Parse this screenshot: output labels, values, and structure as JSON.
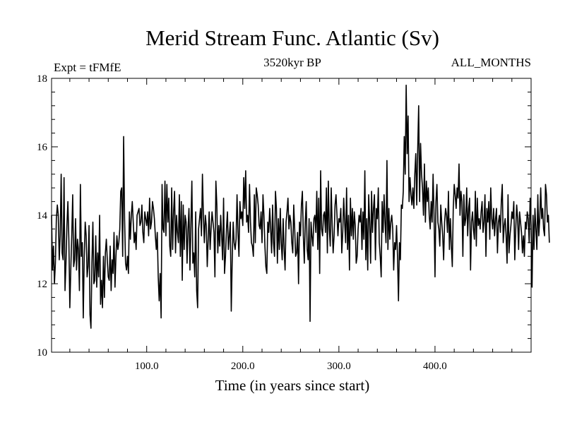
{
  "chart_data": {
    "type": "line",
    "title": "Merid Stream Func. Atlantic (Sv)",
    "left_label": "Expt = tFMfE",
    "center_label": "3520kyr BP",
    "right_label": "ALL_MONTHS",
    "xlabel": "Time (in years since start)",
    "ylabel": "",
    "xlim": [
      1,
      500
    ],
    "ylim": [
      10,
      18
    ],
    "x_ticks": [
      100,
      200,
      300,
      400
    ],
    "x_tick_labels": [
      "100.0",
      "200.0",
      "300.0",
      "400.0"
    ],
    "y_ticks": [
      10,
      12,
      14,
      16,
      18
    ],
    "y_tick_labels": [
      "10",
      "12",
      "14",
      "16",
      "18"
    ],
    "colors": {
      "line": "#000000",
      "axes": "#000000",
      "background": "#ffffff"
    },
    "series": [
      {
        "name": "Merid Stream Func. Atlantic",
        "x_start": 1,
        "x_step": 1,
        "values": [
          14.0,
          12.4,
          13.1,
          12.0,
          12.6,
          13.9,
          14.3,
          14.0,
          12.7,
          13.4,
          15.2,
          12.9,
          12.7,
          15.1,
          11.8,
          12.6,
          13.7,
          14.4,
          13.3,
          11.3,
          12.4,
          13.4,
          14.6,
          12.5,
          12.7,
          13.9,
          12.4,
          13.3,
          13.0,
          11.8,
          14.9,
          12.8,
          13.2,
          11.0,
          12.8,
          13.8,
          13.4,
          12.2,
          12.5,
          13.7,
          11.1,
          10.7,
          12.6,
          13.8,
          12.0,
          12.1,
          13.4,
          11.9,
          12.9,
          12.2,
          14.0,
          11.4,
          12.1,
          11.3,
          12.8,
          11.6,
          12.9,
          13.3,
          12.7,
          12.2,
          12.1,
          13.1,
          11.8,
          12.7,
          12.3,
          13.5,
          11.9,
          12.8,
          13.4,
          13.0,
          13.2,
          13.6,
          14.7,
          14.8,
          12.8,
          16.3,
          13.9,
          12.6,
          12.4,
          12.8,
          12.3,
          14.1,
          13.3,
          14.0,
          14.4,
          13.8,
          13.2,
          13.5,
          13.0,
          14.0,
          14.1,
          14.2,
          13.7,
          13.8,
          14.3,
          13.5,
          13.2,
          14.1,
          13.9,
          13.7,
          14.1,
          13.4,
          14.5,
          13.6,
          13.8,
          14.4,
          14.2,
          13.9,
          13.4,
          13.0,
          13.5,
          12.2,
          11.5,
          12.3,
          11.0,
          14.9,
          13.6,
          13.5,
          15.0,
          13.4,
          14.9,
          13.8,
          14.5,
          13.1,
          12.8,
          14.8,
          13.0,
          14.1,
          14.7,
          12.9,
          14.0,
          13.5,
          13.2,
          14.6,
          12.8,
          14.4,
          12.1,
          14.3,
          13.0,
          14.0,
          13.8,
          12.6,
          13.6,
          14.2,
          12.4,
          13.7,
          15.0,
          12.6,
          12.9,
          12.2,
          14.1,
          11.8,
          11.3,
          13.6,
          13.9,
          14.2,
          13.4,
          15.2,
          14.0,
          13.2,
          14.0,
          13.7,
          12.5,
          13.3,
          14.1,
          13.0,
          13.6,
          14.1,
          13.8,
          13.5,
          12.2,
          15.0,
          14.3,
          12.9,
          13.7,
          13.1,
          14.0,
          13.4,
          12.7,
          14.5,
          12.3,
          12.8,
          13.6,
          14.1,
          13.0,
          13.4,
          13.8,
          11.2,
          12.7,
          13.8,
          13.2,
          13.0,
          13.3,
          14.6,
          13.5,
          12.8,
          14.4,
          13.9,
          14.1,
          13.7,
          15.1,
          14.2,
          15.3,
          13.8,
          14.0,
          13.5,
          14.9,
          13.8,
          13.2,
          13.1,
          12.8,
          14.6,
          13.2,
          14.8,
          14.6,
          14.3,
          13.7,
          13.6,
          14.1,
          13.2,
          14.6,
          14.0,
          13.1,
          12.5,
          12.3,
          13.8,
          13.5,
          14.2,
          13.6,
          12.9,
          14.3,
          13.2,
          12.8,
          14.7,
          14.2,
          12.6,
          13.9,
          13.0,
          14.2,
          13.2,
          12.7,
          13.9,
          13.0,
          12.4,
          13.8,
          14.1,
          14.5,
          13.6,
          14.0,
          13.8,
          13.2,
          12.9,
          14.3,
          13.6,
          12.8,
          12.9,
          13.5,
          12.0,
          13.8,
          13.4,
          14.3,
          14.7,
          13.4,
          12.6,
          13.8,
          14.4,
          13.0,
          12.7,
          13.9,
          10.9,
          13.8,
          13.4,
          13.1,
          13.9,
          14.0,
          13.5,
          14.7,
          13.0,
          14.5,
          12.3,
          15.3,
          13.6,
          13.4,
          14.0,
          14.1,
          13.5,
          14.8,
          12.9,
          15.0,
          13.6,
          13.1,
          14.8,
          13.7,
          12.9,
          13.4,
          14.3,
          14.6,
          14.0,
          13.4,
          13.9,
          13.8,
          14.2,
          12.9,
          13.5,
          14.5,
          13.8,
          13.2,
          14.8,
          13.0,
          14.0,
          12.4,
          14.5,
          13.4,
          14.2,
          13.3,
          14.1,
          13.7,
          12.6,
          12.8,
          13.6,
          14.0,
          13.8,
          14.2,
          13.0,
          14.1,
          13.3,
          15.3,
          12.7,
          13.9,
          12.4,
          14.6,
          13.8,
          12.6,
          14.7,
          13.5,
          14.2,
          14.6,
          12.7,
          14.2,
          13.9,
          14.8,
          13.2,
          12.8,
          12.2,
          14.4,
          13.5,
          14.6,
          13.8,
          13.2,
          15.6,
          13.0,
          14.2,
          13.3,
          13.8,
          14.0,
          13.6,
          12.4,
          13.2,
          13.0,
          13.7,
          12.8,
          11.5,
          13.2,
          12.7,
          14.3,
          14.2,
          14.7,
          16.3,
          15.2,
          17.8,
          15.8,
          16.9,
          14.4,
          15.1,
          14.6,
          14.3,
          14.8,
          14.2,
          15.2,
          15.8,
          14.3,
          15.9,
          17.2,
          14.4,
          16.1,
          15.2,
          14.8,
          14.0,
          15.5,
          13.8,
          15.0,
          14.4,
          14.8,
          14.0,
          13.6,
          14.4,
          13.8,
          15.2,
          14.0,
          12.2,
          14.4,
          14.9,
          13.8,
          13.6,
          13.1,
          14.3,
          13.8,
          13.4,
          12.7,
          13.8,
          14.2,
          14.0,
          13.5,
          14.7,
          13.0,
          13.9,
          13.1,
          12.5,
          14.2,
          14.9,
          14.6,
          14.2,
          14.8,
          14.5,
          15.5,
          14.0,
          14.7,
          14.4,
          12.8,
          14.6,
          13.7,
          13.9,
          14.8,
          13.4,
          14.2,
          14.5,
          12.4,
          13.8,
          14.1,
          13.6,
          13.3,
          14.7,
          13.1,
          14.5,
          13.7,
          13.9,
          13.6,
          14.1,
          14.4,
          13.5,
          13.8,
          14.6,
          12.8,
          14.2,
          13.8,
          14.4,
          13.3,
          14.8,
          13.9,
          13.6,
          14.2,
          13.4,
          13.9,
          14.2,
          12.9,
          13.8,
          14.0,
          13.5,
          14.4,
          14.9,
          13.2,
          13.7,
          13.9,
          13.4,
          12.6,
          14.6,
          12.9,
          13.4,
          13.7,
          14.1,
          13.9,
          14.4,
          12.7,
          13.6,
          14.3,
          13.9,
          13.0,
          14.1,
          13.8,
          13.5,
          12.9,
          13.4,
          12.8,
          13.8,
          13.6,
          14.1,
          13.9,
          13.2,
          14.5,
          13.7,
          11.9,
          14.0,
          13.0,
          14.2,
          13.6,
          13.0,
          14.6,
          13.4,
          13.9,
          14.8,
          13.9,
          14.2,
          13.6,
          13.4,
          14.9,
          14.6,
          13.8,
          14.0,
          13.2
        ]
      }
    ]
  }
}
